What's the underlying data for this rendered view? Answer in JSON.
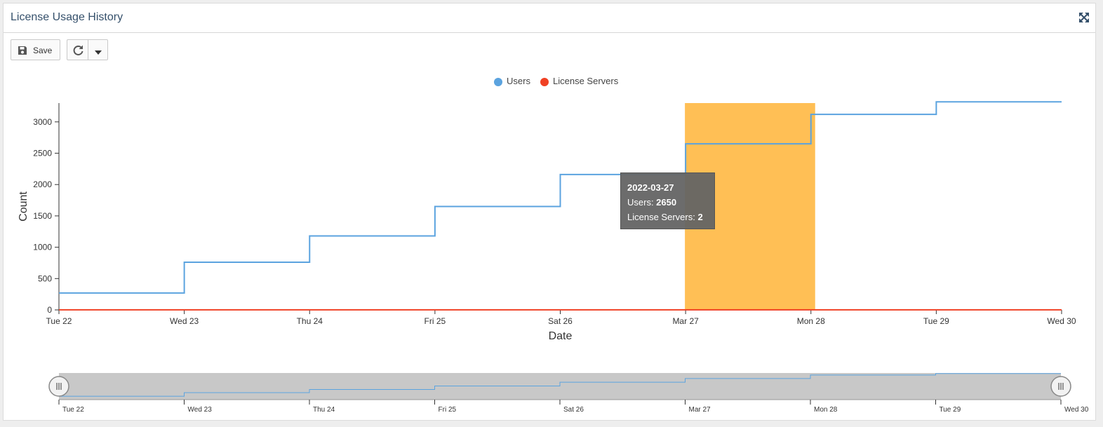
{
  "header": {
    "title": "License Usage History"
  },
  "toolbar": {
    "save_label": "Save"
  },
  "colors": {
    "users": "#5ba3df",
    "license_servers": "#f04124",
    "highlight": "#ffbf55",
    "navigator_bg": "#c8c8c8"
  },
  "tooltip": {
    "date": "2022-03-27",
    "users_label": "Users: ",
    "users_value": "2650",
    "servers_label": "License Servers: ",
    "servers_value": "2"
  },
  "chart_data": {
    "type": "line",
    "step": true,
    "title": "",
    "xlabel": "Date",
    "ylabel": "Count",
    "ylim": [
      0,
      3300
    ],
    "yticks": [
      0,
      500,
      1000,
      1500,
      2000,
      2500,
      3000
    ],
    "x": [
      "Tue 22",
      "Wed 23",
      "Thu 24",
      "Fri 25",
      "Sat 26",
      "Mar 27",
      "Mon 28",
      "Tue 29",
      "Wed 30"
    ],
    "series": [
      {
        "name": "Users",
        "values": [
          270,
          760,
          1180,
          1650,
          2160,
          2650,
          3120,
          3320,
          3320
        ]
      },
      {
        "name": "License Servers",
        "values": [
          2,
          2,
          2,
          2,
          2,
          2,
          2,
          2,
          2
        ]
      }
    ],
    "highlight": {
      "from": "Mar 27",
      "to": "Mon 28"
    },
    "legend": "top-center",
    "grid": false,
    "navigator": {
      "x": [
        "Tue 22",
        "Wed 23",
        "Thu 24",
        "Fri 25",
        "Sat 26",
        "Mar 27",
        "Mon 28",
        "Tue 29",
        "Wed 30"
      ]
    }
  }
}
